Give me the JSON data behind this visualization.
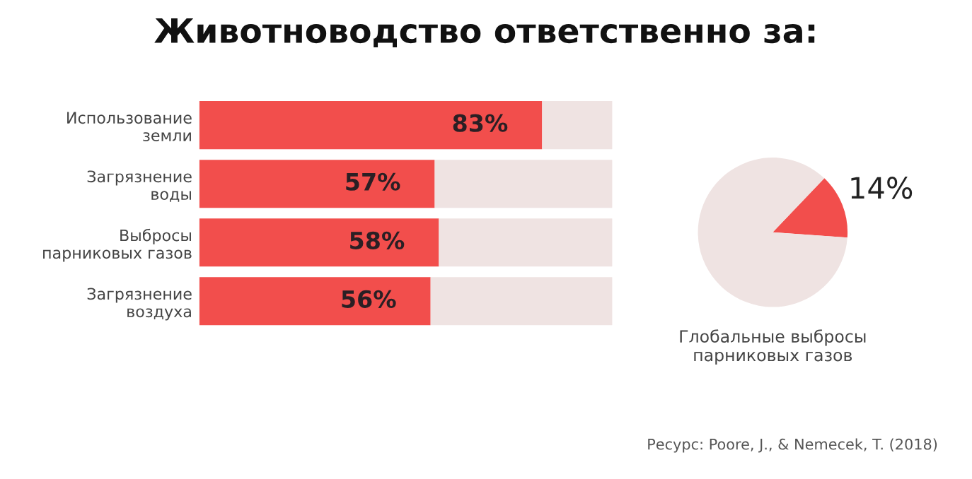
{
  "chart_data": [
    {
      "type": "bar",
      "orientation": "horizontal",
      "stacked": true,
      "title": "Животноводство ответственно за:",
      "categories": [
        "Использование\nземли",
        "Загрязнение\nводы",
        "Выбросы\nпарниковых газов",
        "Загрязнение\nвоздуха"
      ],
      "series": [
        {
          "color": "#f24e4c",
          "values": [
            83,
            57,
            58,
            56
          ],
          "value_labels": [
            "83%",
            "57%",
            "58%",
            "56%"
          ]
        },
        {
          "color": "#efe3e2",
          "values": [
            17,
            43,
            42,
            44
          ]
        }
      ],
      "xlim": [
        0,
        100
      ],
      "tick_labels": "y",
      "grid": false,
      "legend": false
    },
    {
      "type": "pie",
      "categories": [
        null,
        null
      ],
      "values": [
        14,
        86
      ],
      "colors": [
        "#f24e4c",
        "#efe3e2"
      ],
      "value_labels": [
        "14%",
        null
      ],
      "xlabel": "Глобальные выбросы\nпарниковых газов",
      "annotations": [
        "Ресурс: Poore, J., & Nemecek, T. (2018)"
      ]
    }
  ]
}
